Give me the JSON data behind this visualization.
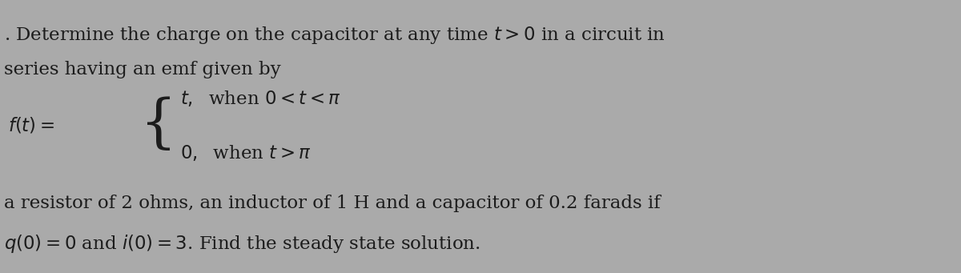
{
  "background_color": "#aaaaaa",
  "text_color": "#1c1c1c",
  "font_size_main": 16.5,
  "line1": ". Determine the charge on the capacitor at any time $t > 0$ in a circuit in",
  "line2": "series having an emf given by",
  "ft_label": "$f(t) = $",
  "brace": "{",
  "case1_main": "$t,$  when $0 < t < \\pi$",
  "case2_main": "$0,$  when $t > \\pi$",
  "line_bottom1": "a resistor of 2 ohms, an inductor of 1 H and a capacitor of 0.2 farads if",
  "line_bottom2": "$q(0) = 0$ and $i(0) = 3$. Find the steady state solution."
}
